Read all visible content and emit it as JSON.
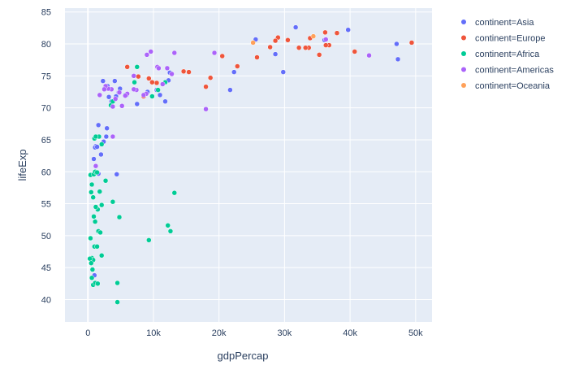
{
  "chart_data": {
    "type": "scatter",
    "xlabel": "gdpPercap",
    "ylabel": "lifeExp",
    "xlim": [
      -3500,
      52500
    ],
    "ylim": [
      36.5,
      85.6
    ],
    "xticks": [
      0,
      10000,
      20000,
      30000,
      40000,
      50000
    ],
    "xtick_labels": [
      "0",
      "10k",
      "20k",
      "30k",
      "40k",
      "50k"
    ],
    "yticks": [
      40,
      45,
      50,
      55,
      60,
      65,
      70,
      75,
      80,
      85
    ],
    "ytick_labels": [
      "40",
      "45",
      "50",
      "55",
      "60",
      "65",
      "70",
      "75",
      "80",
      "85"
    ],
    "grid": true,
    "legend": "right",
    "series": [
      {
        "name": "continent=Asia",
        "color": "#636efa",
        "points": [
          [
            31700,
            82.6
          ],
          [
            39700,
            82.2
          ],
          [
            47100,
            80.0
          ],
          [
            47300,
            77.6
          ],
          [
            25600,
            80.7
          ],
          [
            28600,
            78.4
          ],
          [
            22300,
            75.6
          ],
          [
            21700,
            72.8
          ],
          [
            29800,
            75.6
          ],
          [
            36100,
            80.6
          ],
          [
            2300,
            74.2
          ],
          [
            2500,
            73.0
          ],
          [
            3000,
            73.4
          ],
          [
            3200,
            71.7
          ],
          [
            3600,
            71.0
          ],
          [
            4100,
            74.2
          ],
          [
            4300,
            71.8
          ],
          [
            4700,
            72.4
          ],
          [
            4900,
            73.0
          ],
          [
            5900,
            72.0
          ],
          [
            7500,
            70.6
          ],
          [
            9100,
            72.5
          ],
          [
            10500,
            72.8
          ],
          [
            11000,
            72.0
          ],
          [
            11800,
            71.0
          ],
          [
            12300,
            74.3
          ],
          [
            12500,
            75.5
          ],
          [
            2900,
            66.8
          ],
          [
            2400,
            64.7
          ],
          [
            1600,
            67.3
          ],
          [
            1200,
            64.0
          ],
          [
            900,
            62.0
          ],
          [
            1100,
            63.8
          ],
          [
            1400,
            63.9
          ],
          [
            2000,
            62.7
          ],
          [
            4400,
            59.6
          ],
          [
            1000,
            43.8
          ],
          [
            1600,
            59.7
          ],
          [
            2800,
            65.5
          ]
        ]
      },
      {
        "name": "continent=Europe",
        "color": "#ef553b",
        "points": [
          [
            49400,
            80.2
          ],
          [
            40700,
            78.8
          ],
          [
            38000,
            81.7
          ],
          [
            36200,
            81.8
          ],
          [
            36800,
            79.8
          ],
          [
            36300,
            79.8
          ],
          [
            35300,
            78.3
          ],
          [
            33900,
            80.9
          ],
          [
            33700,
            79.4
          ],
          [
            33200,
            79.4
          ],
          [
            32200,
            79.4
          ],
          [
            30500,
            80.6
          ],
          [
            29000,
            81.0
          ],
          [
            28600,
            80.5
          ],
          [
            27800,
            79.5
          ],
          [
            25800,
            77.9
          ],
          [
            22800,
            76.5
          ],
          [
            20500,
            78.1
          ],
          [
            18000,
            73.3
          ],
          [
            18700,
            74.7
          ],
          [
            15400,
            75.6
          ],
          [
            14600,
            75.7
          ],
          [
            10500,
            73.9
          ],
          [
            9800,
            74.0
          ],
          [
            9300,
            74.6
          ],
          [
            8500,
            71.8
          ],
          [
            7700,
            74.9
          ],
          [
            6000,
            76.4
          ]
        ]
      },
      {
        "name": "continent=Africa",
        "color": "#00cc96",
        "points": [
          [
            7100,
            74.0
          ],
          [
            7500,
            76.4
          ],
          [
            13200,
            56.7
          ],
          [
            12600,
            50.7
          ],
          [
            12200,
            51.6
          ],
          [
            9300,
            49.3
          ],
          [
            4800,
            52.9
          ],
          [
            4500,
            42.6
          ],
          [
            4500,
            39.6
          ],
          [
            3800,
            55.3
          ],
          [
            2700,
            58.6
          ],
          [
            2100,
            54.8
          ],
          [
            1800,
            56.9
          ],
          [
            1500,
            54.1
          ],
          [
            1200,
            54.5
          ],
          [
            1100,
            52.2
          ],
          [
            900,
            53.0
          ],
          [
            800,
            56.0
          ],
          [
            600,
            58.0
          ],
          [
            500,
            56.8
          ],
          [
            400,
            59.5
          ],
          [
            900,
            59.6
          ],
          [
            1100,
            60.0
          ],
          [
            1400,
            59.9
          ],
          [
            1700,
            65.5
          ],
          [
            2100,
            64.3
          ],
          [
            1000,
            65.2
          ],
          [
            1200,
            65.5
          ],
          [
            400,
            49.6
          ],
          [
            600,
            46.5
          ],
          [
            800,
            46.2
          ],
          [
            300,
            46.4
          ],
          [
            500,
            45.7
          ],
          [
            700,
            44.7
          ],
          [
            1000,
            48.3
          ],
          [
            1400,
            48.3
          ],
          [
            1600,
            50.7
          ],
          [
            1900,
            50.5
          ],
          [
            2100,
            46.9
          ],
          [
            800,
            42.3
          ],
          [
            1100,
            42.6
          ],
          [
            1500,
            42.5
          ],
          [
            600,
            43.4
          ],
          [
            3500,
            70.4
          ],
          [
            3800,
            71.0
          ],
          [
            5700,
            72.0
          ],
          [
            10700,
            72.8
          ],
          [
            11800,
            74.0
          ],
          [
            9800,
            71.8
          ]
        ]
      },
      {
        "name": "continent=Americas",
        "color": "#ab63fa",
        "points": [
          [
            42900,
            78.2
          ],
          [
            36300,
            80.7
          ],
          [
            19300,
            78.6
          ],
          [
            18000,
            69.8
          ],
          [
            13200,
            78.6
          ],
          [
            12800,
            75.3
          ],
          [
            12100,
            76.2
          ],
          [
            11400,
            73.7
          ],
          [
            10600,
            76.4
          ],
          [
            9600,
            78.8
          ],
          [
            9000,
            78.3
          ],
          [
            8900,
            72.2
          ],
          [
            8500,
            72.0
          ],
          [
            7400,
            72.8
          ],
          [
            7000,
            75.0
          ],
          [
            7000,
            72.9
          ],
          [
            6000,
            72.2
          ],
          [
            5700,
            71.9
          ],
          [
            5200,
            70.3
          ],
          [
            4800,
            72.4
          ],
          [
            4200,
            71.4
          ],
          [
            3800,
            70.2
          ],
          [
            3600,
            72.9
          ],
          [
            3100,
            73.0
          ],
          [
            3800,
            65.5
          ],
          [
            2700,
            73.4
          ],
          [
            2500,
            72.9
          ],
          [
            1200,
            60.9
          ],
          [
            1800,
            72.0
          ],
          [
            10800,
            76.2
          ]
        ]
      },
      {
        "name": "continent=Oceania",
        "color": "#ffa15a",
        "points": [
          [
            34400,
            81.2
          ],
          [
            25200,
            80.2
          ]
        ]
      }
    ]
  }
}
